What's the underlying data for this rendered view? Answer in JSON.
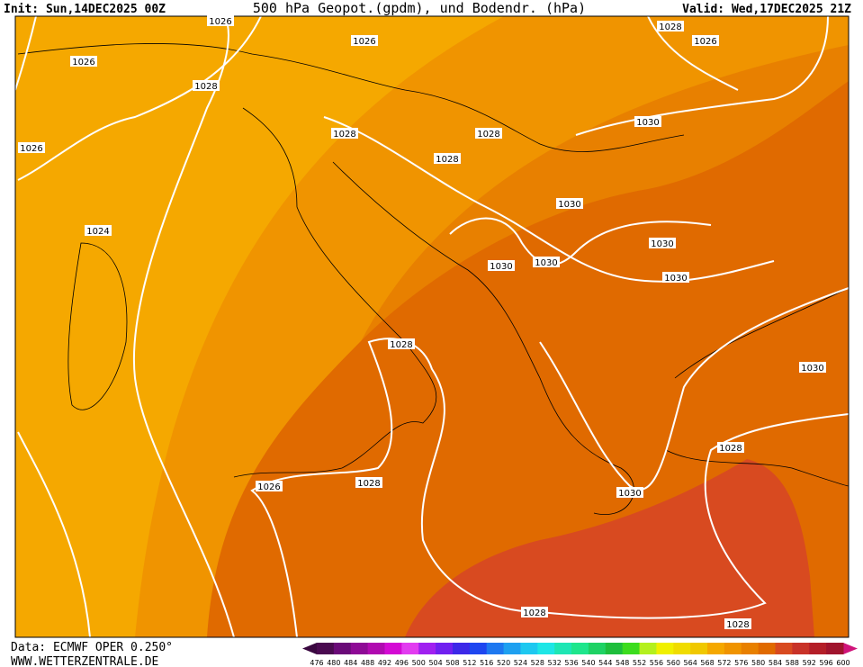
{
  "header": {
    "init": "Init: Sun,14DEC2025 00Z",
    "title": "500 hPa Geopot.(gpdm), und Bodendr. (hPa)",
    "valid": "Valid: Wed,17DEC2025 21Z"
  },
  "isobar_labels": [
    "1026",
    "1026",
    "1026",
    "1028",
    "1026",
    "1028",
    "1028",
    "1028",
    "1028",
    "1026",
    "1030",
    "1030",
    "1024",
    "1030",
    "1030",
    "1030",
    "1030",
    "1028",
    "1030",
    "1028",
    "1026",
    "1028",
    "1030",
    "1028",
    "1028"
  ],
  "footer": {
    "data": "Data: ECMWF OPER 0.250°",
    "site": "WWW.WETTERZENTRALE.DE"
  },
  "colorbar": {
    "labels": [
      476,
      480,
      484,
      488,
      492,
      496,
      500,
      504,
      508,
      512,
      516,
      520,
      524,
      528,
      532,
      536,
      540,
      544,
      548,
      552,
      556,
      560,
      564,
      568,
      572,
      576,
      580,
      584,
      588,
      592,
      596,
      600
    ],
    "colors": [
      "#4a0a50",
      "#6a0a78",
      "#8e0a96",
      "#b00ab0",
      "#d40ad4",
      "#e23cf0",
      "#a020f0",
      "#7020f0",
      "#3c28e8",
      "#1e46f0",
      "#1e78f0",
      "#1ea0f0",
      "#1ec8f0",
      "#1ee6e6",
      "#1ee6b4",
      "#1ee68c",
      "#1ed264",
      "#1ebe3c",
      "#3cdc1e",
      "#b4f01e",
      "#f0f000",
      "#f0dc00",
      "#f0c800",
      "#f5a800",
      "#f09400",
      "#e88000",
      "#e06a00",
      "#d84a20",
      "#c83228",
      "#b41e28",
      "#a0142d"
    ]
  }
}
